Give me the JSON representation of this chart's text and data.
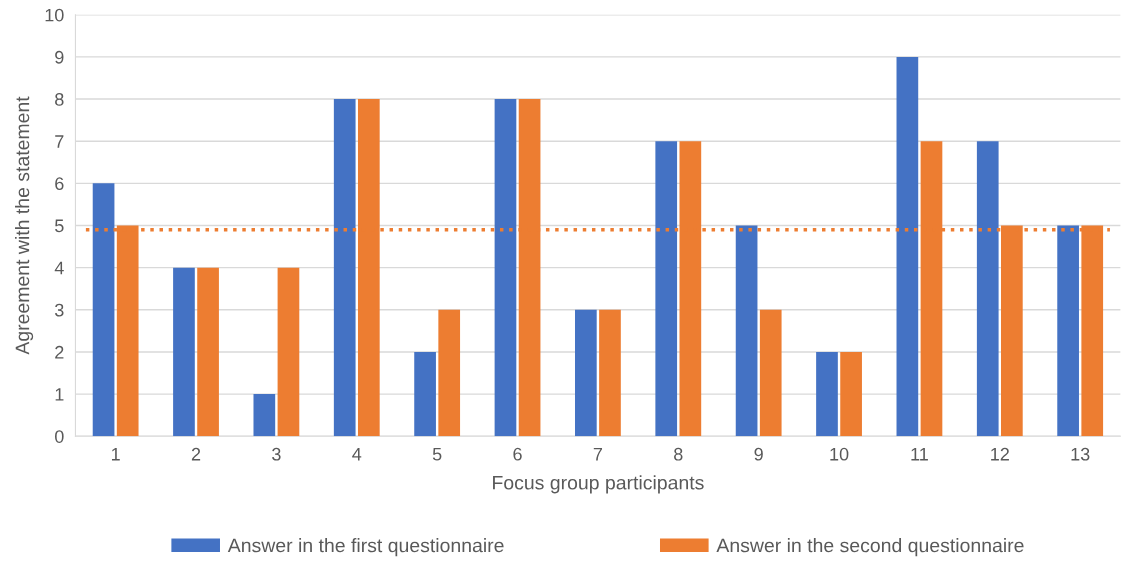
{
  "chart_data": {
    "type": "bar",
    "xlabel": "Focus group participants",
    "ylabel": "Agreement with the statement",
    "categories": [
      "1",
      "2",
      "3",
      "4",
      "5",
      "6",
      "7",
      "8",
      "9",
      "10",
      "11",
      "12",
      "13"
    ],
    "series": [
      {
        "name": "Answer in the first questionnaire",
        "color": "#4472c4",
        "values": [
          6,
          4,
          1,
          8,
          2,
          8,
          3,
          7,
          5,
          2,
          9,
          7,
          5
        ]
      },
      {
        "name": "Answer in the second questionnaire",
        "color": "#ed7d31",
        "values": [
          5,
          4,
          4,
          8,
          3,
          8,
          3,
          7,
          3,
          2,
          7,
          5,
          5
        ]
      }
    ],
    "ref_lines": [
      {
        "axis": "y",
        "value": 4.9,
        "color": "#ed7d31",
        "line_style": "dotted"
      }
    ],
    "ylim": [
      0,
      10
    ],
    "yticks": [
      0,
      1,
      2,
      3,
      4,
      5,
      6,
      7,
      8,
      9,
      10
    ],
    "grid": "y",
    "legend": "bottom"
  }
}
